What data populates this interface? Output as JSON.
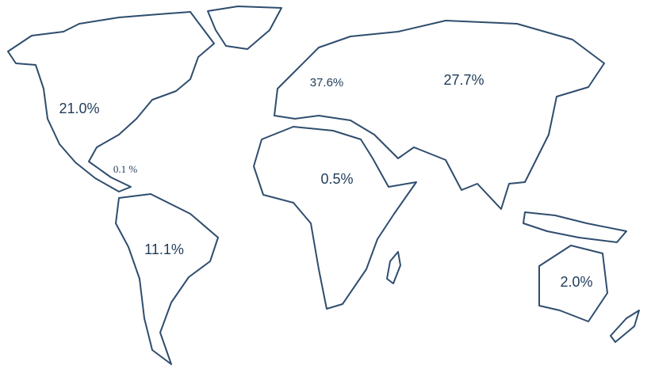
{
  "regions": [
    {
      "label": "21.0%"
    },
    {
      "label": "0.1 %"
    },
    {
      "label": "11.1%"
    },
    {
      "label": "37.6%"
    },
    {
      "label": "27.7%"
    },
    {
      "label": "0.5%"
    },
    {
      "label": "2.0%"
    }
  ]
}
